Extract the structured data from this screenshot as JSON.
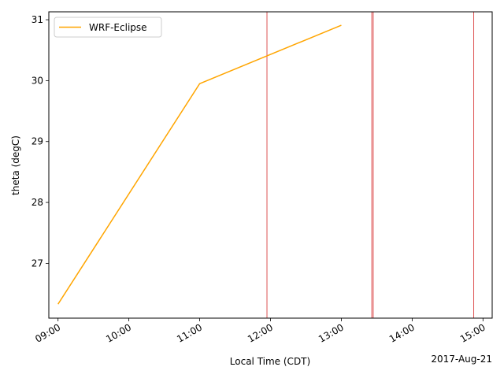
{
  "chart_data": {
    "type": "line",
    "title": "",
    "xlabel": "Local Time (CDT)",
    "ylabel": "theta (degC)",
    "date_label": "2017-Aug-21",
    "x_unit": "hours (CDT, decimal)",
    "xlim": [
      8.87,
      15.13
    ],
    "ylim": [
      26.1,
      31.13
    ],
    "x_ticks": [
      {
        "value": 9,
        "label": "09:00"
      },
      {
        "value": 10,
        "label": "10:00"
      },
      {
        "value": 11,
        "label": "11:00"
      },
      {
        "value": 12,
        "label": "12:00"
      },
      {
        "value": 13,
        "label": "13:00"
      },
      {
        "value": 14,
        "label": "14:00"
      },
      {
        "value": 15,
        "label": "15:00"
      }
    ],
    "y_ticks": [
      {
        "value": 27,
        "label": "27"
      },
      {
        "value": 28,
        "label": "28"
      },
      {
        "value": 29,
        "label": "29"
      },
      {
        "value": 30,
        "label": "30"
      },
      {
        "value": 31,
        "label": "31"
      }
    ],
    "series": [
      {
        "name": "WRF-Eclipse",
        "color": "#ffa500",
        "x": [
          9,
          11,
          13
        ],
        "y": [
          26.33,
          29.95,
          30.91
        ]
      }
    ],
    "vertical_lines": {
      "color": "#d62728",
      "x": [
        11.95,
        13.43,
        13.45,
        14.87
      ]
    },
    "legend": {
      "position": "top-left",
      "entries": [
        "WRF-Eclipse"
      ]
    }
  }
}
